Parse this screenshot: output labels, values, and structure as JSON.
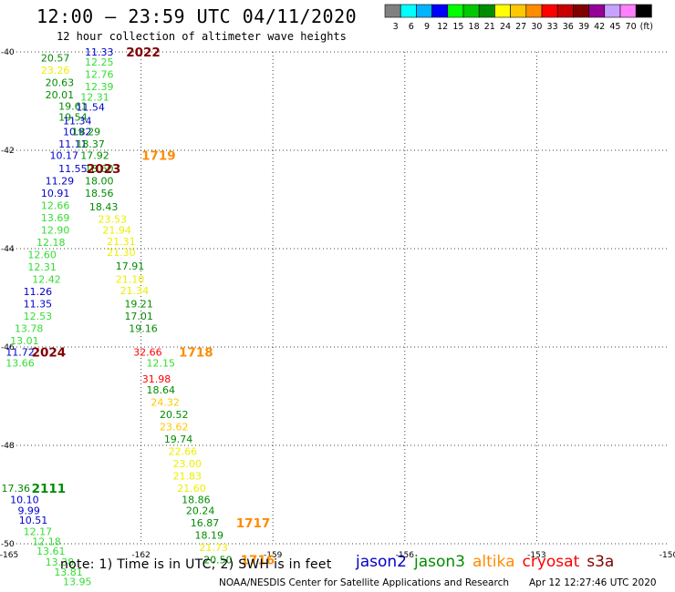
{
  "title": "12:00 – 23:59 UTC 04/11/2020",
  "subtitle": "12 hour collection of altimeter wave heights",
  "colorbar": {
    "colors": [
      "#808080",
      "#00ffff",
      "#00b4ff",
      "#0000ff",
      "#00ff00",
      "#00c800",
      "#008c00",
      "#ffff00",
      "#ffc800",
      "#ff8c00",
      "#ff0000",
      "#c80000",
      "#800000",
      "#960096",
      "#c8a0ff",
      "#ff80ff",
      "#000000"
    ],
    "labels": [
      "3",
      "6",
      "9",
      "12",
      "15",
      "18",
      "21",
      "24",
      "27",
      "30",
      "33",
      "36",
      "39",
      "42",
      "45",
      "70",
      "(ft)"
    ]
  },
  "axes": {
    "x_ticks": [
      "-165",
      "-162",
      "-159",
      "-156",
      "-153",
      "-150"
    ],
    "y_ticks": [
      "-40",
      "-42",
      "-44",
      "-46",
      "-48",
      "-50"
    ]
  },
  "note": "note:  1) Time is in UTC;  2) SWH is in feet",
  "satellites": [
    {
      "name": "jason2",
      "color": "#0000cc"
    },
    {
      "name": "jason3",
      "color": "#008c00"
    },
    {
      "name": "altika",
      "color": "#ff8c00"
    },
    {
      "name": "cryosat",
      "color": "#ff0000"
    },
    {
      "name": "s3a",
      "color": "#800000"
    }
  ],
  "credit": "NOAA/NESDIS Center for Satellite Applications and Research",
  "timestamp": "Apr 12 12:27:46 UTC 2020",
  "chart_data": {
    "type": "scatter",
    "title": "12:00 – 23:59 UTC 04/11/2020",
    "subtitle": "12 hour collection of altimeter wave heights",
    "xlim": [
      -165,
      -150
    ],
    "ylim": [
      -50,
      -40
    ],
    "grid": true,
    "x_ticks": [
      -165,
      -162,
      -159,
      -156,
      -153,
      -150
    ],
    "y_ticks": [
      -40,
      -42,
      -44,
      -46,
      -48,
      -50
    ],
    "points": [
      {
        "lon": -162.95,
        "lat": -40.0,
        "v": "11.33",
        "c": "#0000cc"
      },
      {
        "lon": -163.95,
        "lat": -40.12,
        "v": "20.57",
        "c": "#008c00"
      },
      {
        "lon": -162.95,
        "lat": -40.2,
        "v": "12.25",
        "c": "#33dd33"
      },
      {
        "lon": -163.95,
        "lat": -40.37,
        "v": "23.26",
        "c": "#eeee00"
      },
      {
        "lon": -162.95,
        "lat": -40.45,
        "v": "12.76",
        "c": "#33dd33"
      },
      {
        "lon": -163.85,
        "lat": -40.62,
        "v": "20.63",
        "c": "#008c00"
      },
      {
        "lon": -162.95,
        "lat": -40.7,
        "v": "12.39",
        "c": "#33dd33"
      },
      {
        "lon": -163.85,
        "lat": -40.87,
        "v": "20.01",
        "c": "#008c00"
      },
      {
        "lon": -163.05,
        "lat": -40.92,
        "v": "12.31",
        "c": "#33dd33"
      },
      {
        "lon": -163.55,
        "lat": -41.1,
        "v": "19.61",
        "c": "#008c00"
      },
      {
        "lon": -163.15,
        "lat": -41.12,
        "v": "11.54",
        "c": "#0000cc"
      },
      {
        "lon": -163.55,
        "lat": -41.32,
        "v": "19.54",
        "c": "#008c00"
      },
      {
        "lon": -163.45,
        "lat": -41.4,
        "v": "11.34",
        "c": "#0000cc"
      },
      {
        "lon": -163.45,
        "lat": -41.62,
        "v": "10.82",
        "c": "#0000cc"
      },
      {
        "lon": -163.25,
        "lat": -41.62,
        "v": "19.29",
        "c": "#008c00"
      },
      {
        "lon": -163.55,
        "lat": -41.87,
        "v": "11.11",
        "c": "#0000cc"
      },
      {
        "lon": -163.15,
        "lat": -41.87,
        "v": "18.37",
        "c": "#008c00"
      },
      {
        "lon": -163.75,
        "lat": -42.1,
        "v": "10.17",
        "c": "#0000cc"
      },
      {
        "lon": -163.05,
        "lat": -42.1,
        "v": "17.92",
        "c": "#008c00"
      },
      {
        "lon": -163.55,
        "lat": -42.37,
        "v": "11.55",
        "c": "#0000cc"
      },
      {
        "lon": -162.95,
        "lat": -42.37,
        "v": "18.60",
        "c": "#008c00"
      },
      {
        "lon": -163.85,
        "lat": -42.62,
        "v": "11.29",
        "c": "#0000cc"
      },
      {
        "lon": -162.95,
        "lat": -42.62,
        "v": "18.00",
        "c": "#008c00"
      },
      {
        "lon": -163.95,
        "lat": -42.87,
        "v": "10.91",
        "c": "#0000cc"
      },
      {
        "lon": -162.95,
        "lat": -42.87,
        "v": "18.56",
        "c": "#008c00"
      },
      {
        "lon": -163.95,
        "lat": -43.12,
        "v": "12.66",
        "c": "#33dd33"
      },
      {
        "lon": -162.85,
        "lat": -43.15,
        "v": "18.43",
        "c": "#008c00"
      },
      {
        "lon": -163.95,
        "lat": -43.37,
        "v": "13.69",
        "c": "#33dd33"
      },
      {
        "lon": -162.65,
        "lat": -43.4,
        "v": "23.53",
        "c": "#eeee00"
      },
      {
        "lon": -163.95,
        "lat": -43.62,
        "v": "12.90",
        "c": "#33dd33"
      },
      {
        "lon": -162.55,
        "lat": -43.62,
        "v": "21.94",
        "c": "#eeee00"
      },
      {
        "lon": -164.05,
        "lat": -43.87,
        "v": "12.18",
        "c": "#33dd33"
      },
      {
        "lon": -162.45,
        "lat": -43.85,
        "v": "21.31",
        "c": "#eeee00"
      },
      {
        "lon": -164.25,
        "lat": -44.12,
        "v": "12.60",
        "c": "#33dd33"
      },
      {
        "lon": -162.45,
        "lat": -44.07,
        "v": "21.30",
        "c": "#eeee00"
      },
      {
        "lon": -164.25,
        "lat": -44.37,
        "v": "12.31",
        "c": "#33dd33"
      },
      {
        "lon": -162.25,
        "lat": -44.35,
        "v": "17.91",
        "c": "#008c00"
      },
      {
        "lon": -164.15,
        "lat": -44.62,
        "v": "12.42",
        "c": "#33dd33"
      },
      {
        "lon": -162.25,
        "lat": -44.62,
        "v": "21.10",
        "c": "#eeee00"
      },
      {
        "lon": -164.35,
        "lat": -44.87,
        "v": "11.26",
        "c": "#0000cc"
      },
      {
        "lon": -162.15,
        "lat": -44.85,
        "v": "21.34",
        "c": "#eeee00"
      },
      {
        "lon": -164.35,
        "lat": -45.12,
        "v": "11.35",
        "c": "#0000cc"
      },
      {
        "lon": -162.05,
        "lat": -45.12,
        "v": "19.21",
        "c": "#008c00"
      },
      {
        "lon": -164.35,
        "lat": -45.37,
        "v": "12.53",
        "c": "#33dd33"
      },
      {
        "lon": -162.05,
        "lat": -45.37,
        "v": "17.01",
        "c": "#008c00"
      },
      {
        "lon": -164.55,
        "lat": -45.62,
        "v": "13.78",
        "c": "#33dd33"
      },
      {
        "lon": -161.95,
        "lat": -45.62,
        "v": "19.16",
        "c": "#008c00"
      },
      {
        "lon": -164.65,
        "lat": -45.87,
        "v": "13.01",
        "c": "#33dd33"
      },
      {
        "lon": -164.75,
        "lat": -46.1,
        "v": "11.72",
        "c": "#0000cc"
      },
      {
        "lon": -161.85,
        "lat": -46.1,
        "v": "32.66",
        "c": "#ff0000"
      },
      {
        "lon": -164.75,
        "lat": -46.32,
        "v": "13.66",
        "c": "#33dd33"
      },
      {
        "lon": -161.55,
        "lat": -46.32,
        "v": "12.15",
        "c": "#33dd33"
      },
      {
        "lon": -161.65,
        "lat": -46.65,
        "v": "31.98",
        "c": "#ff0000"
      },
      {
        "lon": -161.55,
        "lat": -46.87,
        "v": "18.64",
        "c": "#008c00"
      },
      {
        "lon": -161.45,
        "lat": -47.12,
        "v": "24.32",
        "c": "#ffc800"
      },
      {
        "lon": -161.25,
        "lat": -47.37,
        "v": "20.52",
        "c": "#008c00"
      },
      {
        "lon": -161.25,
        "lat": -47.62,
        "v": "23.62",
        "c": "#ffc800"
      },
      {
        "lon": -161.15,
        "lat": -47.87,
        "v": "19.74",
        "c": "#008c00"
      },
      {
        "lon": -161.05,
        "lat": -48.12,
        "v": "22.66",
        "c": "#eeee00"
      },
      {
        "lon": -160.95,
        "lat": -48.37,
        "v": "23.00",
        "c": "#eeee00"
      },
      {
        "lon": -160.95,
        "lat": -48.62,
        "v": "21.83",
        "c": "#eeee00"
      },
      {
        "lon": -160.85,
        "lat": -48.87,
        "v": "21.60",
        "c": "#eeee00"
      },
      {
        "lon": -160.75,
        "lat": -49.1,
        "v": "18.86",
        "c": "#008c00"
      },
      {
        "lon": -164.85,
        "lat": -48.87,
        "v": "17.36",
        "c": "#008c00"
      },
      {
        "lon": -164.65,
        "lat": -49.1,
        "v": "10.10",
        "c": "#0000cc"
      },
      {
        "lon": -164.55,
        "lat": -49.32,
        "v": "9.99",
        "c": "#0000cc"
      },
      {
        "lon": -160.65,
        "lat": -49.32,
        "v": "20.24",
        "c": "#008c00"
      },
      {
        "lon": -164.45,
        "lat": -49.52,
        "v": "10.51",
        "c": "#0000cc"
      },
      {
        "lon": -160.55,
        "lat": -49.57,
        "v": "16.87",
        "c": "#008c00"
      },
      {
        "lon": -164.35,
        "lat": -49.75,
        "v": "12.17",
        "c": "#33dd33"
      },
      {
        "lon": -160.45,
        "lat": -49.82,
        "v": "18.19",
        "c": "#008c00"
      },
      {
        "lon": -164.15,
        "lat": -49.95,
        "v": "12.18",
        "c": "#33dd33"
      },
      {
        "lon": -160.35,
        "lat": -50.07,
        "v": "21.73",
        "c": "#eeee00"
      },
      {
        "lon": -164.05,
        "lat": -50.15,
        "v": "13.61",
        "c": "#33dd33"
      },
      {
        "lon": -160.25,
        "lat": -50.32,
        "v": "20.50",
        "c": "#008c00"
      },
      {
        "lon": -163.85,
        "lat": -50.37,
        "v": "13.38",
        "c": "#33dd33"
      },
      {
        "lon": -163.65,
        "lat": -50.57,
        "v": "13.81",
        "c": "#33dd33"
      },
      {
        "lon": -163.45,
        "lat": -50.77,
        "v": "13.95",
        "c": "#33dd33"
      }
    ],
    "time_labels": [
      {
        "lon": -161.95,
        "lat": -40.0,
        "v": "2022",
        "c": "#800000"
      },
      {
        "lon": -161.6,
        "lat": -42.1,
        "v": "1719",
        "c": "#ff8c00"
      },
      {
        "lon": -162.85,
        "lat": -42.37,
        "v": "2023",
        "c": "#800000"
      },
      {
        "lon": -160.75,
        "lat": -46.1,
        "v": "1718",
        "c": "#ff8c00"
      },
      {
        "lon": -164.1,
        "lat": -46.1,
        "v": "2024",
        "c": "#800000"
      },
      {
        "lon": -164.1,
        "lat": -48.87,
        "v": "2111",
        "c": "#008c00"
      },
      {
        "lon": -159.45,
        "lat": -49.57,
        "v": "1717",
        "c": "#ff8c00"
      },
      {
        "lon": -159.35,
        "lat": -50.32,
        "v": "1716",
        "c": "#ff8c00"
      }
    ]
  }
}
